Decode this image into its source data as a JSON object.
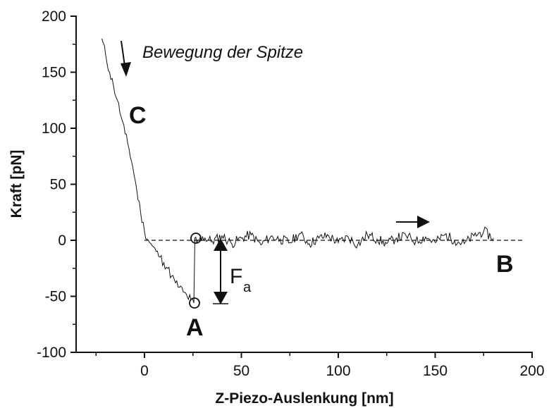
{
  "chart_data": {
    "type": "line",
    "title": "",
    "xlabel": "Z-Piezo-Auslenkung [nm]",
    "ylabel": "Kraft [pN]",
    "xlim": [
      -35,
      200
    ],
    "ylim": [
      -100,
      200
    ],
    "xticks": [
      0,
      50,
      100,
      150,
      200
    ],
    "yticks": [
      -100,
      -50,
      0,
      50,
      100,
      150,
      200
    ],
    "x_tick_labels": [
      "0",
      "50",
      "100",
      "150",
      "200"
    ],
    "y_tick_labels": [
      "-100",
      "-50",
      "0",
      "50",
      "100",
      "150",
      "200"
    ],
    "grid": false,
    "baseline": {
      "y": 0,
      "x_from": 0,
      "x_to": 195,
      "style": "dashed"
    },
    "series": [
      {
        "x": [
          -22,
          -20,
          -18,
          -16,
          -14,
          -12,
          -10,
          -8,
          -6,
          -4,
          -2,
          0,
          2,
          4,
          6,
          8,
          10,
          12,
          14,
          16,
          18,
          20,
          22,
          24,
          25.5,
          26,
          27,
          30,
          35,
          40,
          45,
          50,
          55,
          60,
          65,
          70,
          75,
          80,
          85,
          90,
          95,
          100,
          105,
          110,
          115,
          120,
          125,
          130,
          135,
          140,
          145,
          150,
          155,
          160,
          165,
          170,
          175,
          180
        ],
        "y": [
          180,
          165,
          150,
          138,
          125,
          110,
          95,
          82,
          65,
          45,
          25,
          8,
          0,
          -5,
          -10,
          -15,
          -20,
          -25,
          -32,
          -38,
          -42,
          -46,
          -50,
          -53,
          -56,
          2,
          -2,
          3,
          -1,
          4,
          -3,
          2,
          5,
          -4,
          3,
          1,
          -2,
          6,
          -3,
          2,
          4,
          -2,
          3,
          -4,
          5,
          1,
          -3,
          2,
          4,
          -1,
          3,
          -2,
          5,
          0,
          -3,
          4,
          8,
          2
        ]
      }
    ],
    "annotations": {
      "points": [
        {
          "label": "A",
          "x": 26,
          "y": -56
        },
        {
          "label": "B",
          "x": 195,
          "y": -20
        },
        {
          "label": "C",
          "x": -6,
          "y": 110
        }
      ],
      "tip_motion_text": "Bewegung der Spitze",
      "force_label_main": "F",
      "force_label_sub": "a"
    }
  }
}
